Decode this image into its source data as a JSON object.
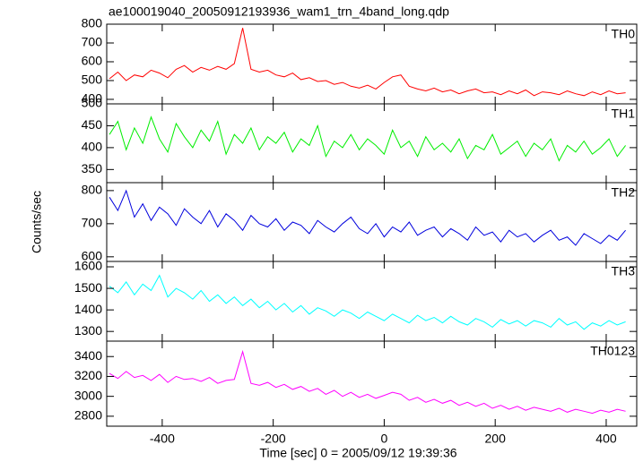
{
  "chart_data": [
    {
      "type": "line",
      "title": "ae100019040_20050912193936_wam1_trn_4band_long.qdp",
      "label": "TH0",
      "color": "#ff0000",
      "xlim": [
        -500,
        455
      ],
      "xticks": [
        -400,
        -200,
        0,
        200,
        400
      ],
      "ylim": [
        376,
        800
      ],
      "yticks": [
        400,
        500,
        600,
        700,
        800
      ],
      "x": [
        -495,
        -480,
        -465,
        -450,
        -435,
        -420,
        -405,
        -390,
        -375,
        -360,
        -345,
        -330,
        -315,
        -300,
        -285,
        -270,
        -255,
        -240,
        -225,
        -210,
        -195,
        -180,
        -165,
        -150,
        -135,
        -120,
        -105,
        -90,
        -75,
        -60,
        -45,
        -30,
        -15,
        0,
        15,
        30,
        45,
        60,
        75,
        90,
        105,
        120,
        135,
        150,
        165,
        180,
        195,
        210,
        225,
        240,
        255,
        270,
        285,
        300,
        315,
        330,
        345,
        360,
        375,
        390,
        405,
        420,
        435
      ],
      "values": [
        510,
        545,
        500,
        530,
        520,
        555,
        540,
        515,
        560,
        580,
        545,
        570,
        555,
        575,
        560,
        590,
        780,
        560,
        545,
        555,
        530,
        520,
        540,
        505,
        515,
        495,
        500,
        480,
        490,
        470,
        460,
        475,
        455,
        490,
        520,
        530,
        470,
        455,
        445,
        460,
        440,
        450,
        430,
        445,
        455,
        435,
        440,
        425,
        445,
        430,
        450,
        420,
        440,
        435,
        425,
        445,
        430,
        420,
        440,
        425,
        445,
        430,
        435
      ]
    },
    {
      "type": "line",
      "label": "TH1",
      "color": "#00ee00",
      "xlim": [
        -500,
        455
      ],
      "xticks": [
        -400,
        -200,
        0,
        200,
        400
      ],
      "ylim": [
        320,
        500
      ],
      "yticks": [
        350,
        400,
        450,
        500
      ],
      "x": [
        -495,
        -480,
        -465,
        -450,
        -435,
        -420,
        -405,
        -390,
        -375,
        -360,
        -345,
        -330,
        -315,
        -300,
        -285,
        -270,
        -255,
        -240,
        -225,
        -210,
        -195,
        -180,
        -165,
        -150,
        -135,
        -120,
        -105,
        -90,
        -75,
        -60,
        -45,
        -30,
        -15,
        0,
        15,
        30,
        45,
        60,
        75,
        90,
        105,
        120,
        135,
        150,
        165,
        180,
        195,
        210,
        225,
        240,
        255,
        270,
        285,
        300,
        315,
        330,
        345,
        360,
        375,
        390,
        405,
        420,
        435
      ],
      "values": [
        430,
        460,
        395,
        445,
        410,
        470,
        420,
        390,
        455,
        425,
        400,
        440,
        415,
        460,
        385,
        430,
        410,
        445,
        395,
        425,
        410,
        435,
        390,
        420,
        405,
        450,
        380,
        415,
        400,
        430,
        395,
        420,
        405,
        385,
        440,
        400,
        415,
        380,
        425,
        395,
        410,
        390,
        420,
        375,
        405,
        395,
        430,
        385,
        400,
        415,
        380,
        410,
        395,
        420,
        370,
        405,
        390,
        415,
        385,
        400,
        420,
        380,
        405
      ]
    },
    {
      "type": "line",
      "label": "TH2",
      "ylabel": "Counts/sec",
      "color": "#0000dd",
      "xlim": [
        -500,
        455
      ],
      "xticks": [
        -400,
        -200,
        0,
        200,
        400
      ],
      "ylim": [
        586,
        824
      ],
      "yticks": [
        600,
        700,
        800
      ],
      "x": [
        -495,
        -480,
        -465,
        -450,
        -435,
        -420,
        -405,
        -390,
        -375,
        -360,
        -345,
        -330,
        -315,
        -300,
        -285,
        -270,
        -255,
        -240,
        -225,
        -210,
        -195,
        -180,
        -165,
        -150,
        -135,
        -120,
        -105,
        -90,
        -75,
        -60,
        -45,
        -30,
        -15,
        0,
        15,
        30,
        45,
        60,
        75,
        90,
        105,
        120,
        135,
        150,
        165,
        180,
        195,
        210,
        225,
        240,
        255,
        270,
        285,
        300,
        315,
        330,
        345,
        360,
        375,
        390,
        405,
        420,
        435
      ],
      "values": [
        780,
        740,
        800,
        720,
        760,
        710,
        750,
        730,
        695,
        745,
        720,
        700,
        740,
        690,
        730,
        710,
        680,
        725,
        700,
        690,
        715,
        680,
        705,
        695,
        670,
        710,
        690,
        675,
        700,
        720,
        685,
        670,
        700,
        660,
        690,
        675,
        705,
        665,
        680,
        690,
        660,
        685,
        670,
        650,
        690,
        665,
        675,
        645,
        680,
        660,
        670,
        645,
        665,
        680,
        650,
        660,
        635,
        670,
        655,
        640,
        665,
        650,
        680
      ]
    },
    {
      "type": "line",
      "label": "TH3",
      "color": "#00ffff",
      "xlim": [
        -500,
        455
      ],
      "xticks": [
        -400,
        -200,
        0,
        200,
        400
      ],
      "ylim": [
        1255,
        1625
      ],
      "yticks": [
        1300,
        1400,
        1500,
        1600
      ],
      "x": [
        -495,
        -480,
        -465,
        -450,
        -435,
        -420,
        -405,
        -390,
        -375,
        -360,
        -345,
        -330,
        -315,
        -300,
        -285,
        -270,
        -255,
        -240,
        -225,
        -210,
        -195,
        -180,
        -165,
        -150,
        -135,
        -120,
        -105,
        -90,
        -75,
        -60,
        -45,
        -30,
        -15,
        0,
        15,
        30,
        45,
        60,
        75,
        90,
        105,
        120,
        135,
        150,
        165,
        180,
        195,
        210,
        225,
        240,
        255,
        270,
        285,
        300,
        315,
        330,
        345,
        360,
        375,
        390,
        405,
        420,
        435
      ],
      "values": [
        1510,
        1480,
        1530,
        1470,
        1520,
        1490,
        1560,
        1460,
        1500,
        1480,
        1450,
        1490,
        1440,
        1470,
        1430,
        1460,
        1420,
        1450,
        1410,
        1440,
        1400,
        1430,
        1390,
        1420,
        1380,
        1410,
        1395,
        1370,
        1400,
        1385,
        1360,
        1390,
        1370,
        1350,
        1380,
        1360,
        1340,
        1375,
        1350,
        1365,
        1340,
        1370,
        1345,
        1330,
        1360,
        1345,
        1320,
        1355,
        1335,
        1350,
        1325,
        1350,
        1340,
        1320,
        1360,
        1330,
        1345,
        1310,
        1340,
        1325,
        1350,
        1330,
        1345
      ]
    },
    {
      "type": "line",
      "label": "TH0123",
      "xlabel": "Time [sec] 0 = 2005/09/12 19:39:36",
      "color": "#ff00ff",
      "xlim": [
        -500,
        455
      ],
      "xticks": [
        -400,
        -200,
        0,
        200,
        400
      ],
      "ylim": [
        2700,
        3555
      ],
      "yticks": [
        2800,
        3000,
        3200,
        3400
      ],
      "x": [
        -495,
        -480,
        -465,
        -450,
        -435,
        -420,
        -405,
        -390,
        -375,
        -360,
        -345,
        -330,
        -315,
        -300,
        -285,
        -270,
        -255,
        -240,
        -225,
        -210,
        -195,
        -180,
        -165,
        -150,
        -135,
        -120,
        -105,
        -90,
        -75,
        -60,
        -45,
        -30,
        -15,
        0,
        15,
        30,
        45,
        60,
        75,
        90,
        105,
        120,
        135,
        150,
        165,
        180,
        195,
        210,
        225,
        240,
        255,
        270,
        285,
        300,
        315,
        330,
        345,
        360,
        375,
        390,
        405,
        420,
        435
      ],
      "values": [
        3230,
        3180,
        3250,
        3190,
        3210,
        3160,
        3220,
        3140,
        3200,
        3170,
        3180,
        3150,
        3190,
        3130,
        3160,
        3170,
        3450,
        3130,
        3110,
        3140,
        3090,
        3120,
        3070,
        3100,
        3050,
        3080,
        3020,
        3060,
        3000,
        3040,
        2990,
        3020,
        2980,
        3010,
        3040,
        3020,
        2960,
        2990,
        2940,
        2970,
        2930,
        2960,
        2910,
        2940,
        2900,
        2930,
        2880,
        2910,
        2870,
        2900,
        2860,
        2890,
        2870,
        2850,
        2880,
        2840,
        2870,
        2850,
        2830,
        2860,
        2840,
        2870,
        2850
      ]
    }
  ]
}
